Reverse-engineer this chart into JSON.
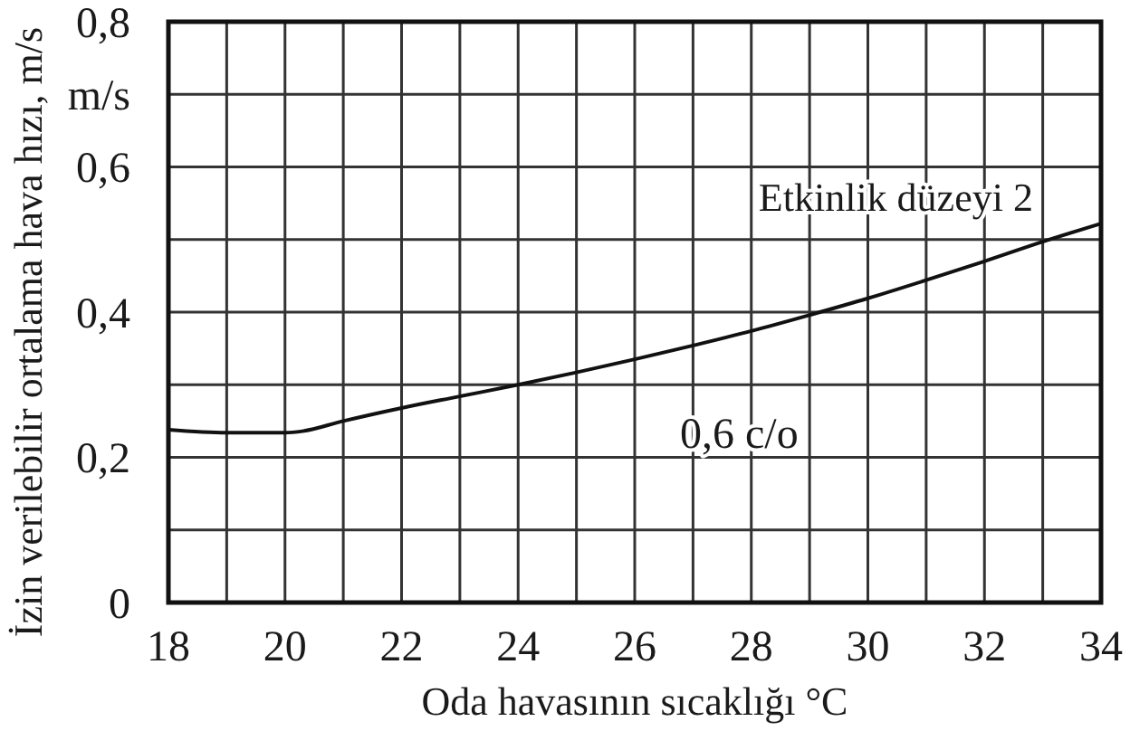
{
  "chart_data": {
    "type": "line",
    "xlabel": "Oda havasının sıcaklığı °C",
    "ylabel": "İzin verilebilir ortalama hava hızı, m/s",
    "x": [
      18,
      19,
      20,
      20.3,
      21,
      22,
      23,
      24,
      25,
      26,
      27,
      28,
      29,
      30,
      31,
      32,
      33,
      34
    ],
    "values": [
      0.238,
      0.234,
      0.234,
      0.236,
      0.25,
      0.268,
      0.284,
      0.3,
      0.317,
      0.335,
      0.354,
      0.374,
      0.396,
      0.419,
      0.444,
      0.47,
      0.497,
      0.522
    ],
    "color": "#111111",
    "xlim": [
      18,
      34
    ],
    "xticks": [
      18,
      {
        "value": 19,
        "label": null
      },
      20,
      {
        "value": 21,
        "label": null
      },
      22,
      {
        "value": 23,
        "label": null
      },
      24,
      {
        "value": 25,
        "label": null
      },
      26,
      {
        "value": 27,
        "label": null
      },
      28,
      {
        "value": 29,
        "label": null
      },
      30,
      {
        "value": 31,
        "label": null
      },
      32,
      {
        "value": 33,
        "label": null
      },
      34
    ],
    "ylim": [
      0,
      0.8
    ],
    "yticks": [
      0,
      {
        "value": 0.1,
        "label": null
      },
      {
        "value": 0.2,
        "label": "0,2"
      },
      {
        "value": 0.3,
        "label": null
      },
      {
        "value": 0.4,
        "label": "0,4"
      },
      {
        "value": 0.5,
        "label": null
      },
      {
        "value": 0.6,
        "label": "0,6"
      },
      {
        "value": 0.7,
        "label": "m/s"
      },
      {
        "value": 0.8,
        "label": "0,8"
      }
    ],
    "grid": true,
    "annotations": [
      "Etkinlik düzeyi 2",
      "0,6 c/o"
    ]
  }
}
